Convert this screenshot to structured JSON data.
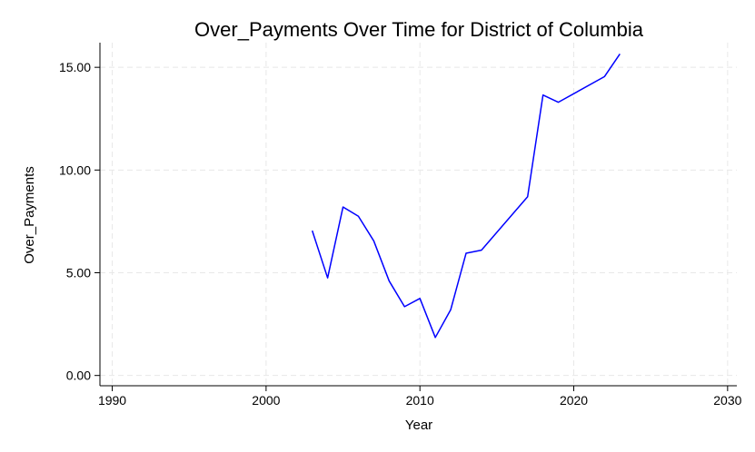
{
  "chart_data": {
    "type": "line",
    "title": "Over_Payments Over Time for District of Columbia",
    "xlabel": "Year",
    "ylabel": "Over_Payments",
    "xlim": [
      1989.2,
      2030.6
    ],
    "ylim": [
      -0.5,
      16.2
    ],
    "xticks": [
      1990,
      2000,
      2010,
      2020,
      2030
    ],
    "xtick_labels": [
      "1990",
      "2000",
      "2010",
      "2020",
      "2030"
    ],
    "yticks": [
      0,
      5,
      10,
      15
    ],
    "ytick_labels": [
      "0.00",
      "5.00",
      "10.00",
      "15.00"
    ],
    "grid": true,
    "series": [
      {
        "color": "#0000ff",
        "x": [
          2003,
          2004,
          2005,
          2006,
          2007,
          2008,
          2009,
          2010,
          2011,
          2012,
          2013,
          2014,
          2017,
          2018,
          2019,
          2022,
          2023
        ],
        "y": [
          7.05,
          4.75,
          8.2,
          7.75,
          6.55,
          4.6,
          3.35,
          3.75,
          1.85,
          3.2,
          5.95,
          6.1,
          8.7,
          13.65,
          13.3,
          14.55,
          15.65
        ]
      }
    ]
  }
}
